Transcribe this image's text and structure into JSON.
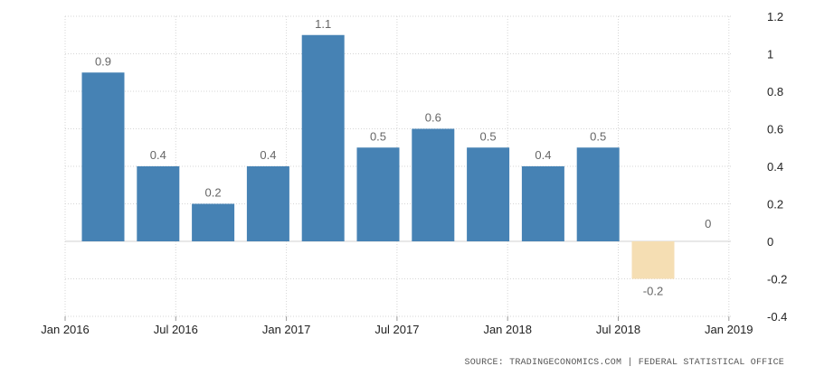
{
  "chart_data": {
    "type": "bar",
    "title": "",
    "xlabel": "",
    "ylabel": "",
    "ylim": [
      -0.4,
      1.2
    ],
    "y_ticks": [
      "1.2",
      "1",
      "0.8",
      "0.6",
      "0.4",
      "0.2",
      "0",
      "-0.2",
      "-0.4"
    ],
    "y_tick_values": [
      1.2,
      1,
      0.8,
      0.6,
      0.4,
      0.2,
      0,
      -0.2,
      -0.4
    ],
    "y_axis_side": "right",
    "grid": true,
    "legend": "none",
    "x_tick_labels": [
      "Jan 2016",
      "Jul 2016",
      "Jan 2017",
      "Jul 2017",
      "Jan 2018",
      "Jul 2018",
      "Jan 2019"
    ],
    "categories": [
      "Q1 2016",
      "Q2 2016",
      "Q3 2016",
      "Q4 2016",
      "Q1 2017",
      "Q2 2017",
      "Q3 2017",
      "Q4 2017",
      "Q1 2018",
      "Q2 2018",
      "Q3 2018",
      "Q4 2018"
    ],
    "values": [
      0.9,
      0.4,
      0.2,
      0.4,
      1.1,
      0.5,
      0.6,
      0.5,
      0.4,
      0.5,
      -0.2,
      0
    ],
    "value_labels": [
      "0.9",
      "0.4",
      "0.2",
      "0.4",
      "1.1",
      "0.5",
      "0.6",
      "0.5",
      "0.4",
      "0.5",
      "-0.2",
      "0"
    ],
    "colors": {
      "positive": "#4682b4",
      "negative": "#f5deb3",
      "label": "#666666",
      "grid": "#d6d6d6"
    }
  },
  "source": {
    "text": "SOURCE: TRADINGECONOMICS.COM | FEDERAL STATISTICAL OFFICE"
  }
}
